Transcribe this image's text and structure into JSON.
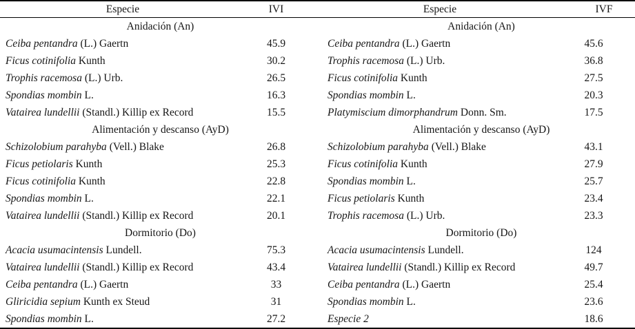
{
  "left": {
    "header": {
      "especie": "Especie",
      "value": "IVI"
    },
    "sections": [
      {
        "title": "Anidación (An)",
        "rows": [
          {
            "species": "Ceiba pentandra",
            "authority": "(L.) Gaertn",
            "value": "45.9"
          },
          {
            "species": "Ficus cotinifolia",
            "authority": "Kunth",
            "value": "30.2"
          },
          {
            "species": "Trophis racemosa",
            "authority": "(L.) Urb.",
            "value": "26.5"
          },
          {
            "species": "Spondias mombin",
            "authority": "L.",
            "value": "16.3"
          },
          {
            "species": "Vatairea lundellii",
            "authority": "(Standl.) Killip ex Record",
            "value": "15.5"
          }
        ]
      },
      {
        "title": "Alimentación y descanso (AyD)",
        "rows": [
          {
            "species": "Schizolobium parahyba",
            "authority": "(Vell.) Blake",
            "value": "26.8"
          },
          {
            "species": "Ficus petiolaris",
            "authority": "Kunth",
            "value": "25.3"
          },
          {
            "species": "Ficus cotinifolia",
            "authority": "Kunth",
            "value": "22.8"
          },
          {
            "species": "Spondias mombin",
            "authority": "L.",
            "value": "22.1"
          },
          {
            "species": "Vatairea lundellii",
            "authority": "(Standl.) Killip ex Record",
            "value": "20.1"
          }
        ]
      },
      {
        "title": "Dormitorio (Do)",
        "rows": [
          {
            "species": "Acacia usumacintensis",
            "authority": "Lundell.",
            "value": "75.3"
          },
          {
            "species": "Vatairea lundellii",
            "authority": "(Standl.) Killip ex Record",
            "value": "43.4"
          },
          {
            "species": "Ceiba pentandra",
            "authority": "(L.) Gaertn",
            "value": "33"
          },
          {
            "species": "Gliricidia sepium",
            "authority": "Kunth ex Steud",
            "value": "31"
          },
          {
            "species": "Spondias mombin",
            "authority": "L.",
            "value": "27.2"
          }
        ]
      }
    ]
  },
  "right": {
    "header": {
      "especie": "Especie",
      "value": "IVF"
    },
    "sections": [
      {
        "title": "Anidación (An)",
        "rows": [
          {
            "species": "Ceiba pentandra",
            "authority": "(L.) Gaertn",
            "value": "45.6"
          },
          {
            "species": "Trophis racemosa",
            "authority": "(L.) Urb.",
            "value": "36.8"
          },
          {
            "species": "Ficus cotinifolia",
            "authority": "Kunth",
            "value": "27.5"
          },
          {
            "species": "Spondias mombin",
            "authority": "L.",
            "value": "20.3"
          },
          {
            "species": "Platymiscium dimorphandrum",
            "authority": "Donn. Sm.",
            "value": "17.5"
          }
        ]
      },
      {
        "title": "Alimentación y descanso (AyD)",
        "rows": [
          {
            "species": "Schizolobium parahyba",
            "authority": "(Vell.) Blake",
            "value": "43.1"
          },
          {
            "species": "Ficus cotinifolia",
            "authority": "Kunth",
            "value": "27.9"
          },
          {
            "species": "Spondias mombin",
            "authority": "L.",
            "value": "25.7"
          },
          {
            "species": "Ficus petiolaris",
            "authority": "Kunth",
            "value": "23.4"
          },
          {
            "species": "Trophis racemosa",
            "authority": "(L.) Urb.",
            "value": "23.3"
          }
        ]
      },
      {
        "title": "Dormitorio (Do)",
        "rows": [
          {
            "species": "Acacia usumacintensis",
            "authority": "Lundell.",
            "value": "124"
          },
          {
            "species": "Vatairea lundellii",
            "authority": "(Standl.) Killip ex Record",
            "value": "49.7"
          },
          {
            "species": "Ceiba pentandra",
            "authority": "(L.) Gaertn",
            "value": "25.4"
          },
          {
            "species": "Spondias mombin",
            "authority": "L.",
            "value": "23.6"
          },
          {
            "species": "Especie 2",
            "authority": "",
            "value": "18.6"
          }
        ]
      }
    ]
  }
}
